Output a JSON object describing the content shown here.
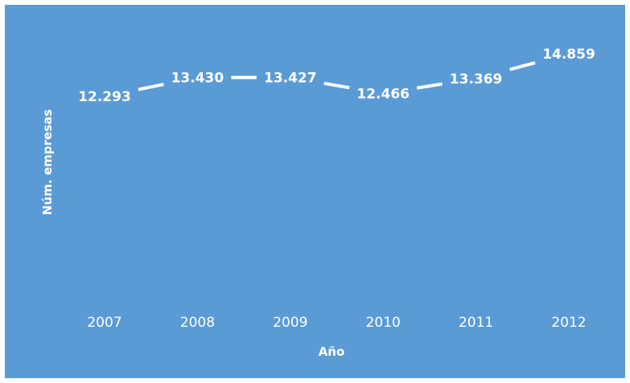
{
  "chart_data": {
    "type": "line",
    "categories": [
      "2007",
      "2008",
      "2009",
      "2010",
      "2011",
      "2012"
    ],
    "series": [
      {
        "values": [
          12293,
          13430,
          13427,
          12466,
          13369,
          14859
        ]
      }
    ],
    "data_labels": [
      "12.293",
      "13.430",
      "13.427",
      "12.466",
      "13.369",
      "14.859"
    ],
    "xlabel": "Año",
    "ylabel": "Núm. empresas",
    "grid": false,
    "legend": "none",
    "drop_lines": true
  },
  "colors": {
    "background": "#5b9bd5",
    "line": "#ffffff",
    "text": "#ffffff"
  }
}
